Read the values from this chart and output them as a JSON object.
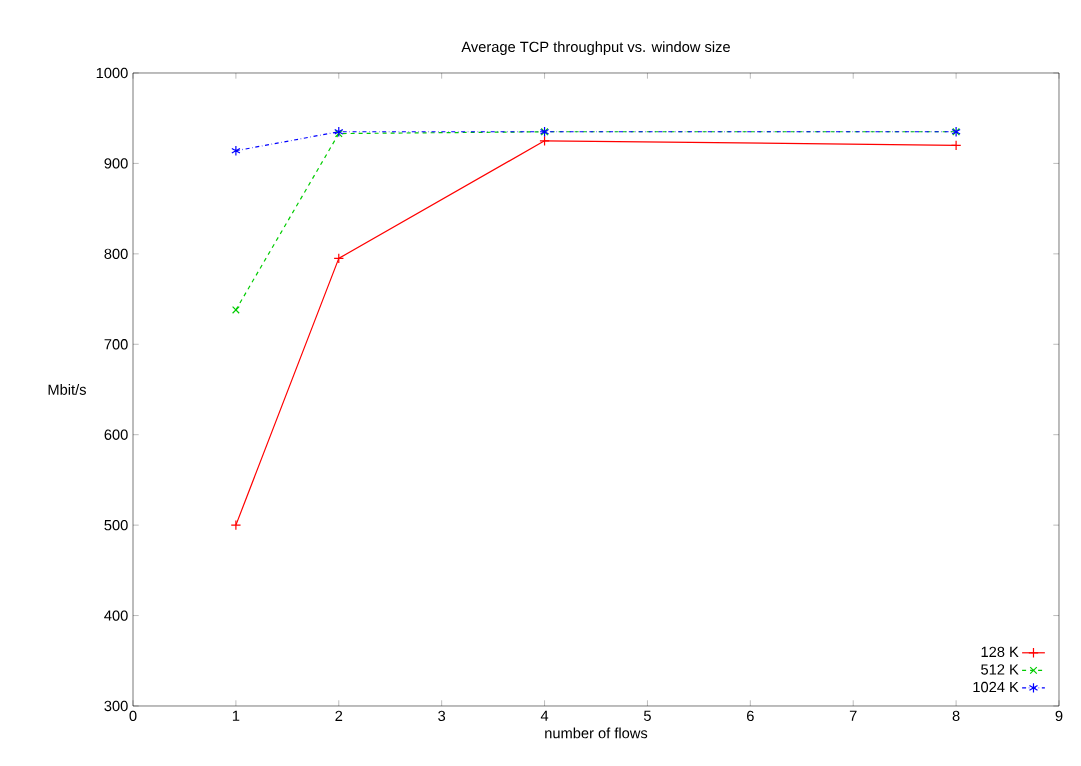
{
  "chart_data": {
    "type": "line",
    "title": "Average TCP throughput vs. window size",
    "xlabel": "number of flows",
    "ylabel": "Mbit/s",
    "x": [
      1,
      2,
      4,
      8
    ],
    "series": [
      {
        "name": "128 K",
        "color": "#ff0000",
        "values": [
          500,
          795,
          925,
          920
        ],
        "line_style": "solid",
        "marker": "cross"
      },
      {
        "name": "512 K",
        "color": "#00cc00",
        "values": [
          738,
          933,
          935,
          935
        ],
        "line_style": "dashed",
        "marker": "cross"
      },
      {
        "name": "1024 K",
        "color": "#0000ff",
        "values": [
          914,
          935,
          935,
          935
        ],
        "line_style": "dotted",
        "marker": "cross"
      }
    ],
    "xlim": [
      0,
      9
    ],
    "ylim": [
      300,
      1000
    ],
    "xticks": [
      0,
      1,
      2,
      3,
      4,
      5,
      6,
      7,
      8,
      9
    ],
    "yticks": [
      300,
      400,
      500,
      600,
      700,
      800,
      900,
      1000
    ],
    "grid": false,
    "legend": "bottom right"
  }
}
